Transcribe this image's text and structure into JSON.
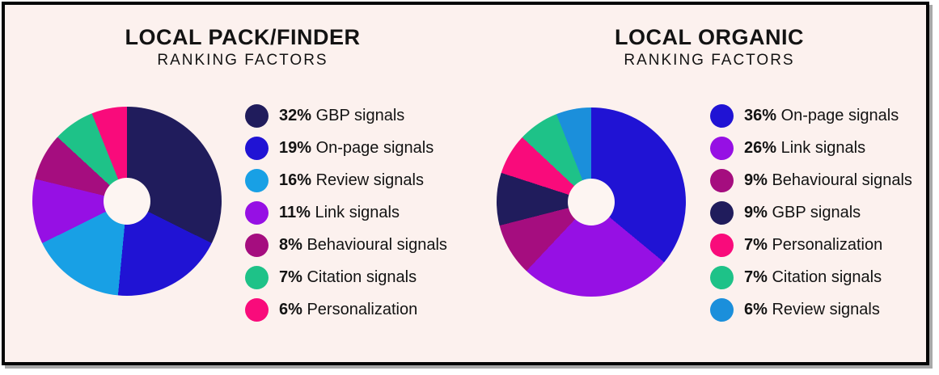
{
  "page": {
    "background": "#fcf1ee",
    "frame_border_color": "#060606",
    "frame_shadow_color": "#a8a8a8",
    "text_color": "#131313",
    "donut_hole_color": "#fdf5f2"
  },
  "chart_data": [
    {
      "type": "pie",
      "donut": true,
      "title": "LOCAL PACK/FINDER",
      "subtitle": "RANKING FACTORS",
      "unit": "%",
      "legend_position": "right",
      "categories": [
        "GBP signals",
        "On-page signals",
        "Review signals",
        "Link signals",
        "Behavioural signals",
        "Citation signals",
        "Personalization"
      ],
      "values": [
        32,
        19,
        16,
        11,
        8,
        7,
        6
      ],
      "colors": [
        "#201c5c",
        "#2013d4",
        "#18a0e5",
        "#9610e4",
        "#a50d7f",
        "#1ec288",
        "#f90b7b"
      ]
    },
    {
      "type": "pie",
      "donut": true,
      "title": "LOCAL ORGANIC",
      "subtitle": "RANKING FACTORS",
      "unit": "%",
      "legend_position": "right",
      "categories": [
        "On-page signals",
        "Link signals",
        "Behavioural signals",
        "GBP signals",
        "Personalization",
        "Citation signals",
        "Review signals"
      ],
      "values": [
        36,
        26,
        9,
        9,
        7,
        7,
        6
      ],
      "colors": [
        "#2013d4",
        "#9610e4",
        "#a50d7f",
        "#201c5c",
        "#f90b7b",
        "#1ec288",
        "#1b8fdb"
      ]
    }
  ]
}
